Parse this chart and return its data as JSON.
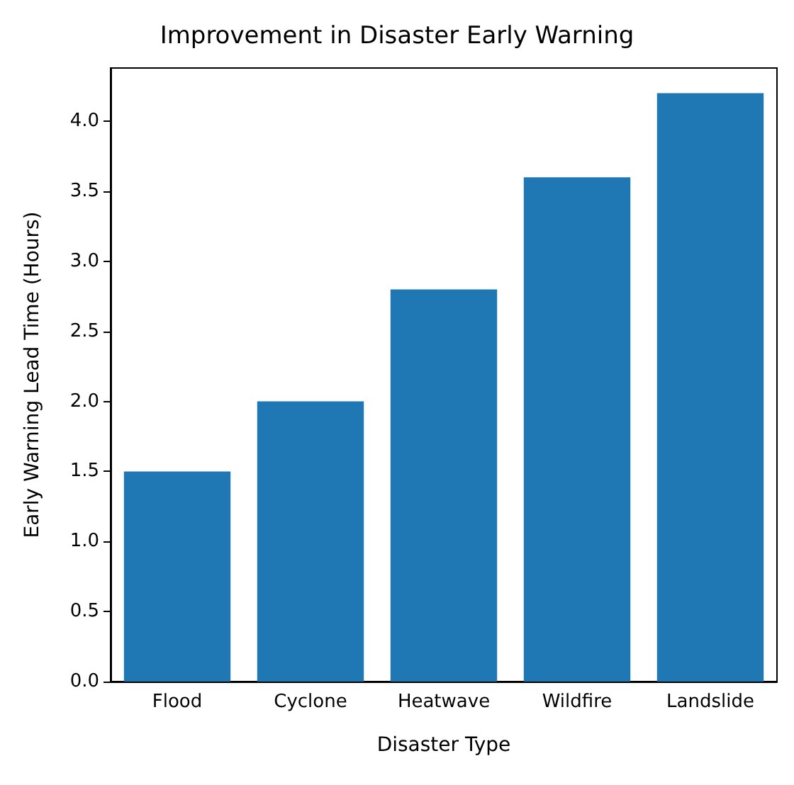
{
  "chart_data": {
    "type": "bar",
    "title": "Improvement in Disaster Early Warning",
    "xlabel": "Disaster Type",
    "ylabel": "Early Warning Lead Time (Hours)",
    "categories": [
      "Flood",
      "Cyclone",
      "Heatwave",
      "Wildfire",
      "Landslide"
    ],
    "values": [
      1.5,
      2.0,
      2.8,
      3.6,
      4.2
    ],
    "color": "#1f77b4",
    "ylim": [
      0,
      4.38
    ],
    "yticks": [
      {
        "value": 0,
        "label": "0.0"
      },
      {
        "value": 0.5,
        "label": "0.5"
      },
      {
        "value": 1,
        "label": "1.0"
      },
      {
        "value": 1.5,
        "label": "1.5"
      },
      {
        "value": 2,
        "label": "2.0"
      },
      {
        "value": 2.5,
        "label": "2.5"
      },
      {
        "value": 3,
        "label": "3.0"
      },
      {
        "value": 3.5,
        "label": "3.5"
      },
      {
        "value": 4,
        "label": "4.0"
      }
    ],
    "grid": false
  }
}
